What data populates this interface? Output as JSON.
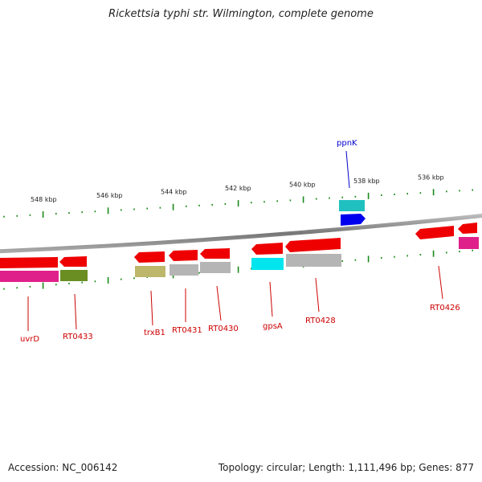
{
  "title": "Rickettsia typhi str. Wilmington, complete genome",
  "footer": {
    "accession": "Accession: NC_006142",
    "summary": "Topology: circular; Length: 1,111,496 bp; Genes: 877"
  },
  "colors": {
    "forward_tick": "#1a8a1a",
    "backbone": "#888888",
    "label_red": "#cc0000",
    "label_blue": "#0000cc"
  },
  "scale_labels": [
    "548 kbp",
    "546 kbp",
    "544 kbp",
    "542 kbp",
    "540 kbp",
    "538 kbp",
    "536 kbp"
  ],
  "genes": [
    {
      "name": "uvrD",
      "color": "#cc0000"
    },
    {
      "name": "RT0433",
      "color": "#cc0000"
    },
    {
      "name": "trxB1",
      "color": "#cc0000"
    },
    {
      "name": "RT0431",
      "color": "#cc0000"
    },
    {
      "name": "RT0430",
      "color": "#cc0000"
    },
    {
      "name": "gpsA",
      "color": "#cc0000"
    },
    {
      "name": "RT0428",
      "color": "#cc0000"
    },
    {
      "name": "ppnK",
      "color": "#0000cc"
    },
    {
      "name": "RT0426",
      "color": "#cc0000"
    }
  ]
}
